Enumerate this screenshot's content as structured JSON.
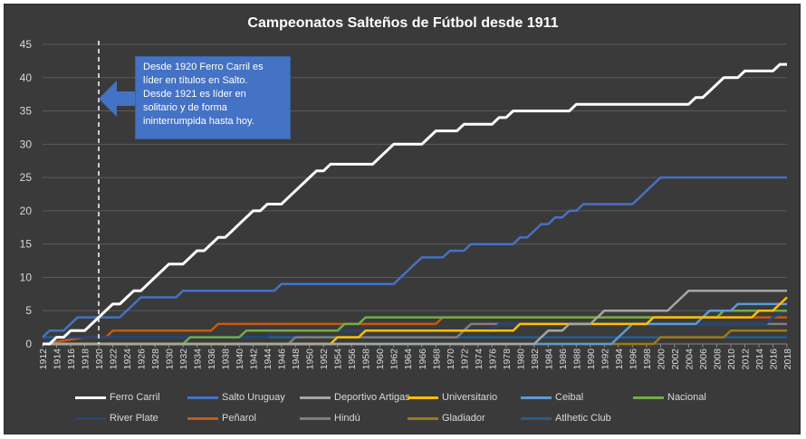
{
  "chart_data": {
    "type": "line",
    "title": "Campeonatos Salteños de Fútbol desde 1911",
    "xlabel": "",
    "ylabel": "",
    "ylim": [
      0,
      45
    ],
    "yticks": [
      0,
      5,
      10,
      15,
      20,
      25,
      30,
      35,
      40,
      45
    ],
    "xticks": [
      "1912",
      "1914",
      "1916",
      "1918",
      "1920",
      "1922",
      "1924",
      "1926",
      "1928",
      "1930",
      "1932",
      "1934",
      "1936",
      "1938",
      "1940",
      "1942",
      "1944",
      "1946",
      "1948",
      "1950",
      "1952",
      "1954",
      "1956",
      "1958",
      "1960",
      "1962",
      "1964",
      "1966",
      "1968",
      "1970",
      "1972",
      "1974",
      "1976",
      "1978",
      "1980",
      "1982",
      "1984",
      "1986",
      "1988",
      "1990",
      "1992",
      "1994",
      "1996",
      "1998",
      "2000",
      "2002",
      "2004",
      "2006",
      "2008",
      "2010",
      "2012",
      "2014",
      "2016",
      "2018"
    ],
    "grid": true,
    "legend_position": "bottom",
    "annotation": {
      "x": 1920,
      "lines": [
        "Desde 1920 Ferro Carril es",
        "líder en títulos en Salto.",
        "Desde 1921 es líder en",
        "solitario y de forma",
        "ininterrumpida hasta hoy."
      ]
    },
    "series": [
      {
        "name": "Ferro Carril",
        "color": "#ffffff",
        "points": [
          [
            1912,
            0
          ],
          [
            1913,
            0
          ],
          [
            1914,
            1
          ],
          [
            1915,
            1
          ],
          [
            1916,
            2
          ],
          [
            1917,
            2
          ],
          [
            1918,
            2
          ],
          [
            1919,
            3
          ],
          [
            1920,
            4
          ],
          [
            1921,
            5
          ],
          [
            1922,
            6
          ],
          [
            1923,
            6
          ],
          [
            1924,
            7
          ],
          [
            1925,
            8
          ],
          [
            1926,
            8
          ],
          [
            1927,
            9
          ],
          [
            1928,
            10
          ],
          [
            1929,
            11
          ],
          [
            1930,
            12
          ],
          [
            1931,
            12
          ],
          [
            1932,
            12
          ],
          [
            1933,
            13
          ],
          [
            1934,
            14
          ],
          [
            1935,
            14
          ],
          [
            1936,
            15
          ],
          [
            1937,
            16
          ],
          [
            1938,
            16
          ],
          [
            1939,
            17
          ],
          [
            1940,
            18
          ],
          [
            1941,
            19
          ],
          [
            1942,
            20
          ],
          [
            1943,
            20
          ],
          [
            1944,
            21
          ],
          [
            1945,
            21
          ],
          [
            1946,
            21
          ],
          [
            1947,
            22
          ],
          [
            1948,
            23
          ],
          [
            1949,
            24
          ],
          [
            1950,
            25
          ],
          [
            1951,
            26
          ],
          [
            1952,
            26
          ],
          [
            1953,
            27
          ],
          [
            1954,
            27
          ],
          [
            1955,
            27
          ],
          [
            1956,
            27
          ],
          [
            1957,
            27
          ],
          [
            1958,
            27
          ],
          [
            1959,
            27
          ],
          [
            1960,
            28
          ],
          [
            1961,
            29
          ],
          [
            1962,
            30
          ],
          [
            1963,
            30
          ],
          [
            1964,
            30
          ],
          [
            1965,
            30
          ],
          [
            1966,
            30
          ],
          [
            1967,
            31
          ],
          [
            1968,
            32
          ],
          [
            1969,
            32
          ],
          [
            1970,
            32
          ],
          [
            1971,
            32
          ],
          [
            1972,
            33
          ],
          [
            1973,
            33
          ],
          [
            1974,
            33
          ],
          [
            1975,
            33
          ],
          [
            1976,
            33
          ],
          [
            1977,
            34
          ],
          [
            1978,
            34
          ],
          [
            1979,
            35
          ],
          [
            1980,
            35
          ],
          [
            1981,
            35
          ],
          [
            1982,
            35
          ],
          [
            1983,
            35
          ],
          [
            1984,
            35
          ],
          [
            1985,
            35
          ],
          [
            1986,
            35
          ],
          [
            1987,
            35
          ],
          [
            1988,
            36
          ],
          [
            1989,
            36
          ],
          [
            1990,
            36
          ],
          [
            1991,
            36
          ],
          [
            1992,
            36
          ],
          [
            1993,
            36
          ],
          [
            1994,
            36
          ],
          [
            1995,
            36
          ],
          [
            1996,
            36
          ],
          [
            1997,
            36
          ],
          [
            1998,
            36
          ],
          [
            1999,
            36
          ],
          [
            2000,
            36
          ],
          [
            2001,
            36
          ],
          [
            2002,
            36
          ],
          [
            2003,
            36
          ],
          [
            2004,
            36
          ],
          [
            2005,
            37
          ],
          [
            2006,
            37
          ],
          [
            2007,
            38
          ],
          [
            2008,
            39
          ],
          [
            2009,
            40
          ],
          [
            2010,
            40
          ],
          [
            2011,
            40
          ],
          [
            2012,
            41
          ],
          [
            2013,
            41
          ],
          [
            2014,
            41
          ],
          [
            2015,
            41
          ],
          [
            2016,
            41
          ],
          [
            2017,
            42
          ],
          [
            2018,
            42
          ]
        ]
      },
      {
        "name": "Salto Uruguay",
        "color": "#4472c4",
        "points": [
          [
            1912,
            1
          ],
          [
            1913,
            2
          ],
          [
            1914,
            2
          ],
          [
            1915,
            2
          ],
          [
            1916,
            3
          ],
          [
            1917,
            4
          ],
          [
            1918,
            4
          ],
          [
            1919,
            4
          ],
          [
            1920,
            4
          ],
          [
            1921,
            4
          ],
          [
            1922,
            4
          ],
          [
            1923,
            4
          ],
          [
            1924,
            5
          ],
          [
            1925,
            6
          ],
          [
            1926,
            7
          ],
          [
            1927,
            7
          ],
          [
            1928,
            7
          ],
          [
            1929,
            7
          ],
          [
            1930,
            7
          ],
          [
            1931,
            7
          ],
          [
            1932,
            8
          ],
          [
            1933,
            8
          ],
          [
            1934,
            8
          ],
          [
            1935,
            8
          ],
          [
            1936,
            8
          ],
          [
            1937,
            8
          ],
          [
            1938,
            8
          ],
          [
            1939,
            8
          ],
          [
            1940,
            8
          ],
          [
            1941,
            8
          ],
          [
            1942,
            8
          ],
          [
            1943,
            8
          ],
          [
            1944,
            8
          ],
          [
            1945,
            8
          ],
          [
            1946,
            9
          ],
          [
            1947,
            9
          ],
          [
            1948,
            9
          ],
          [
            1949,
            9
          ],
          [
            1950,
            9
          ],
          [
            1951,
            9
          ],
          [
            1952,
            9
          ],
          [
            1953,
            9
          ],
          [
            1954,
            9
          ],
          [
            1955,
            9
          ],
          [
            1956,
            9
          ],
          [
            1957,
            9
          ],
          [
            1958,
            9
          ],
          [
            1959,
            9
          ],
          [
            1960,
            9
          ],
          [
            1961,
            9
          ],
          [
            1962,
            9
          ],
          [
            1963,
            10
          ],
          [
            1964,
            11
          ],
          [
            1965,
            12
          ],
          [
            1966,
            13
          ],
          [
            1967,
            13
          ],
          [
            1968,
            13
          ],
          [
            1969,
            13
          ],
          [
            1970,
            14
          ],
          [
            1971,
            14
          ],
          [
            1972,
            14
          ],
          [
            1973,
            15
          ],
          [
            1974,
            15
          ],
          [
            1975,
            15
          ],
          [
            1976,
            15
          ],
          [
            1977,
            15
          ],
          [
            1978,
            15
          ],
          [
            1979,
            15
          ],
          [
            1980,
            16
          ],
          [
            1981,
            16
          ],
          [
            1982,
            17
          ],
          [
            1983,
            18
          ],
          [
            1984,
            18
          ],
          [
            1985,
            19
          ],
          [
            1986,
            19
          ],
          [
            1987,
            20
          ],
          [
            1988,
            20
          ],
          [
            1989,
            21
          ],
          [
            1990,
            21
          ],
          [
            1991,
            21
          ],
          [
            1992,
            21
          ],
          [
            1993,
            21
          ],
          [
            1994,
            21
          ],
          [
            1995,
            21
          ],
          [
            1996,
            21
          ],
          [
            1997,
            22
          ],
          [
            1998,
            23
          ],
          [
            1999,
            24
          ],
          [
            2000,
            25
          ],
          [
            2018,
            25
          ]
        ]
      },
      {
        "name": "Deportivo Artigas",
        "color": "#a5a5a5",
        "points": [
          [
            1912,
            0
          ],
          [
            1982,
            0
          ],
          [
            1983,
            1
          ],
          [
            1984,
            2
          ],
          [
            1986,
            2
          ],
          [
            1987,
            3
          ],
          [
            1990,
            3
          ],
          [
            1991,
            4
          ],
          [
            1992,
            5
          ],
          [
            2001,
            5
          ],
          [
            2002,
            6
          ],
          [
            2003,
            7
          ],
          [
            2004,
            8
          ],
          [
            2018,
            8
          ]
        ]
      },
      {
        "name": "Universitario",
        "color": "#ffc000",
        "points": [
          [
            1912,
            0
          ],
          [
            1953,
            0
          ],
          [
            1954,
            1
          ],
          [
            1957,
            1
          ],
          [
            1958,
            2
          ],
          [
            1959,
            2
          ],
          [
            1960,
            2
          ],
          [
            1969,
            2
          ],
          [
            1970,
            2
          ],
          [
            1979,
            2
          ],
          [
            1980,
            3
          ],
          [
            1998,
            3
          ],
          [
            1999,
            4
          ],
          [
            2013,
            4
          ],
          [
            2014,
            5
          ],
          [
            2016,
            5
          ],
          [
            2017,
            6
          ],
          [
            2018,
            7
          ]
        ]
      },
      {
        "name": "Ceibal",
        "color": "#5b9bd5",
        "points": [
          [
            1912,
            0
          ],
          [
            1993,
            0
          ],
          [
            1994,
            1
          ],
          [
            1995,
            2
          ],
          [
            1996,
            3
          ],
          [
            2005,
            3
          ],
          [
            2006,
            4
          ],
          [
            2007,
            5
          ],
          [
            2010,
            5
          ],
          [
            2011,
            6
          ],
          [
            2018,
            6
          ]
        ]
      },
      {
        "name": "Nacional",
        "color": "#70ad47",
        "points": [
          [
            1912,
            0
          ],
          [
            1932,
            0
          ],
          [
            1933,
            1
          ],
          [
            1940,
            1
          ],
          [
            1941,
            2
          ],
          [
            1948,
            2
          ],
          [
            1949,
            2
          ],
          [
            1954,
            2
          ],
          [
            1955,
            3
          ],
          [
            1957,
            3
          ],
          [
            1958,
            4
          ],
          [
            1969,
            4
          ],
          [
            1970,
            4
          ],
          [
            2008,
            4
          ],
          [
            2009,
            5
          ],
          [
            2018,
            5
          ]
        ]
      },
      {
        "name": "River Plate",
        "color": "#264478",
        "points": [
          [
            1912,
            0
          ],
          [
            1914,
            1
          ],
          [
            1944,
            1
          ],
          [
            1945,
            2
          ],
          [
            1976,
            2
          ],
          [
            1977,
            3
          ],
          [
            1982,
            3
          ],
          [
            1983,
            3
          ],
          [
            2015,
            3
          ],
          [
            2016,
            4
          ],
          [
            2018,
            5
          ]
        ]
      },
      {
        "name": "Peñarol",
        "color": "#c55a11",
        "points": [
          [
            1912,
            0
          ],
          [
            1918,
            1
          ],
          [
            1921,
            1
          ],
          [
            1922,
            2
          ],
          [
            1936,
            2
          ],
          [
            1937,
            3
          ],
          [
            1968,
            3
          ],
          [
            1969,
            4
          ],
          [
            2018,
            4
          ]
        ]
      },
      {
        "name": "Hindú",
        "color": "#7f7f7f",
        "points": [
          [
            1912,
            0
          ],
          [
            1947,
            0
          ],
          [
            1948,
            1
          ],
          [
            1971,
            1
          ],
          [
            1972,
            2
          ],
          [
            1973,
            3
          ],
          [
            1990,
            3
          ],
          [
            1991,
            3
          ],
          [
            2018,
            3
          ]
        ]
      },
      {
        "name": "Gladiador",
        "color": "#9e7a17",
        "points": [
          [
            1912,
            0
          ],
          [
            1999,
            0
          ],
          [
            2000,
            1
          ],
          [
            2009,
            1
          ],
          [
            2010,
            2
          ],
          [
            2018,
            2
          ]
        ]
      },
      {
        "name": "Atlhetic Club",
        "color": "#255e91",
        "points": [
          [
            1912,
            1
          ],
          [
            2018,
            1
          ]
        ]
      }
    ]
  }
}
